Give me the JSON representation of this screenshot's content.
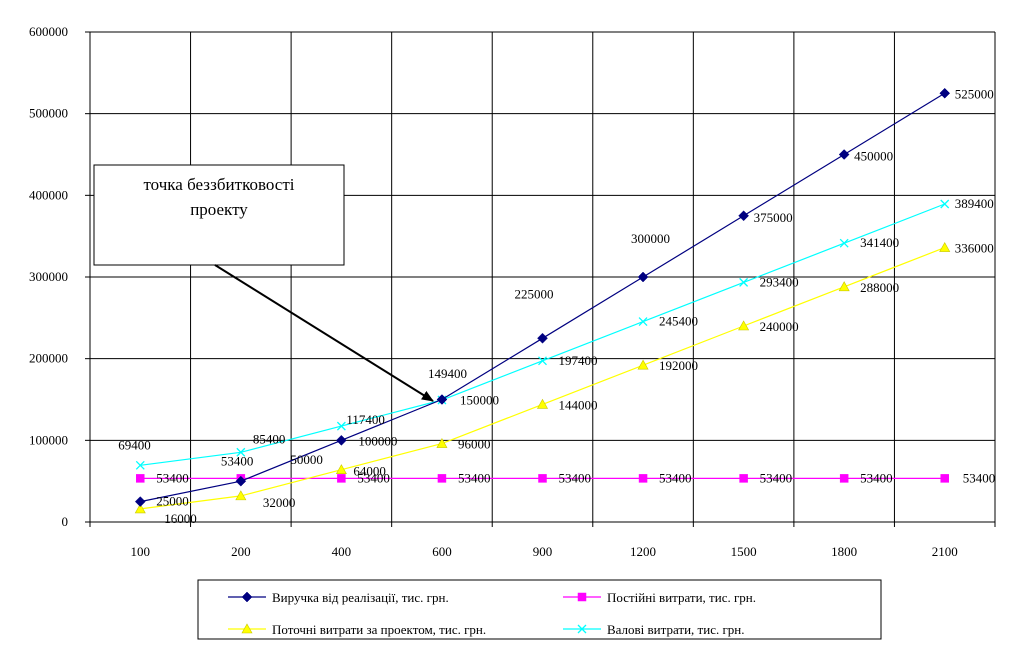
{
  "chart_data": {
    "type": "line",
    "categories": [
      "100",
      "200",
      "400",
      "600",
      "900",
      "1200",
      "1500",
      "1800",
      "2100"
    ],
    "ylim": [
      0,
      600000
    ],
    "yticks": [
      0,
      100000,
      200000,
      300000,
      400000,
      500000,
      600000
    ],
    "grid": true,
    "legend_position": "bottom",
    "series": [
      {
        "name": "Виручка від реалізації, тис. грн.",
        "color": "#000080",
        "marker": "diamond",
        "values": [
          25000,
          50000,
          100000,
          150000,
          225000,
          300000,
          375000,
          450000,
          525000
        ]
      },
      {
        "name": "Постійні витрати, тис. грн.",
        "color": "#FF00FF",
        "marker": "square",
        "values": [
          53400,
          53400,
          53400,
          53400,
          53400,
          53400,
          53400,
          53400,
          53400
        ]
      },
      {
        "name": "Поточні витрати за проектом, тис. грн.",
        "color": "#FFFF00",
        "marker": "triangle",
        "values": [
          16000,
          32000,
          64000,
          96000,
          144000,
          192000,
          240000,
          288000,
          336000
        ]
      },
      {
        "name": "Валові витрати, тис. грн.",
        "color": "#00FFFF",
        "marker": "x",
        "values": [
          69400,
          85400,
          117400,
          149400,
          197400,
          245400,
          293400,
          341400,
          389400
        ]
      }
    ],
    "annotation": {
      "line1": "точка беззбитковості",
      "line2": "проекту"
    }
  }
}
